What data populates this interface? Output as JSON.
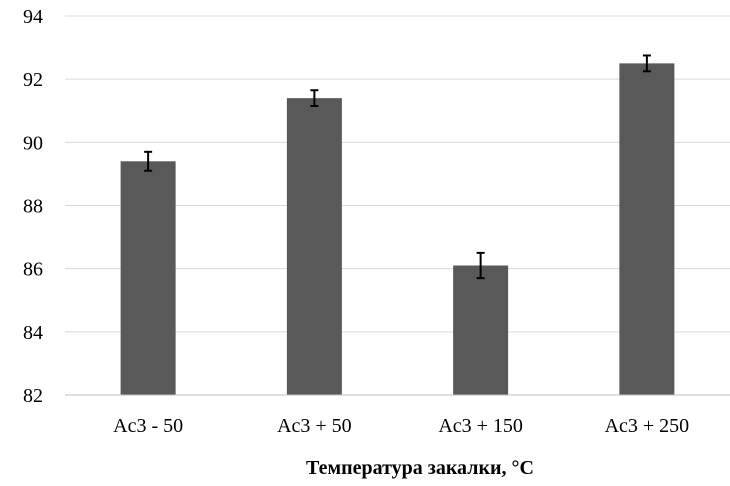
{
  "chart_data": {
    "type": "bar",
    "title": "",
    "xlabel": "Температура закалки, °С",
    "ylabel": "",
    "categories": [
      "Ac3 - 50",
      "Ac3 + 50",
      "Ac3 + 150",
      "Ac3 + 250"
    ],
    "values": [
      89.4,
      91.4,
      86.1,
      92.5
    ],
    "error": [
      0.3,
      0.25,
      0.4,
      0.25
    ],
    "ylim": [
      82,
      94
    ],
    "yticks": [
      82,
      84,
      86,
      88,
      90,
      92,
      94
    ],
    "grid": true,
    "legend": "none",
    "colors": {
      "bar": "#595959",
      "grid": "#d9d9d9",
      "axis": "#bfbfbf",
      "error": "#000000",
      "text": "#000000"
    }
  }
}
